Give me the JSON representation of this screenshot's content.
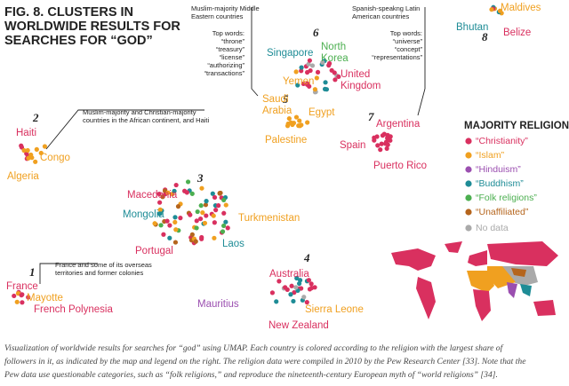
{
  "figure": {
    "title": [
      "FIG. 8. CLUSTERS IN",
      "WORLDWIDE RESULTS FOR",
      "SEARCHES FOR “GOD”"
    ],
    "clusters": [
      {
        "number": "1",
        "annotation": [
          "France and some of its overseas",
          "territories and former colonies"
        ],
        "countries": [
          {
            "name": [
              "France"
            ],
            "color": "#d9305f"
          },
          {
            "name": [
              "Mayotte"
            ],
            "color": "#f0a020"
          },
          {
            "name": [
              "French Polynesia"
            ],
            "color": "#d9305f"
          }
        ]
      },
      {
        "number": "2",
        "annotation": [
          "Muslim-majority and Christian-majority",
          "countries in the African continent, and Haiti"
        ],
        "countries": [
          {
            "name": [
              "Haiti"
            ],
            "color": "#d9305f"
          },
          {
            "name": [
              "Congo"
            ],
            "color": "#f0a020"
          },
          {
            "name": [
              "Algeria"
            ],
            "color": "#f0a020"
          }
        ]
      },
      {
        "number": "3",
        "countries": [
          {
            "name": [
              "Macedonia"
            ],
            "color": "#d9305f"
          },
          {
            "name": [
              "Mongolia"
            ],
            "color": "#1e8c96"
          },
          {
            "name": [
              "Turkmenistan"
            ],
            "color": "#f0a020"
          },
          {
            "name": [
              "Laos"
            ],
            "color": "#1e8c96"
          },
          {
            "name": [
              "Portugal"
            ],
            "color": "#d9305f"
          }
        ]
      },
      {
        "number": "4",
        "countries": [
          {
            "name": [
              "Australia"
            ],
            "color": "#d9305f"
          },
          {
            "name": [
              "Mauritius"
            ],
            "color": "#9b4fb0"
          },
          {
            "name": [
              "Sierra Leone"
            ],
            "color": "#f0a020"
          },
          {
            "name": [
              "New Zealand"
            ],
            "color": "#d9305f"
          }
        ]
      },
      {
        "number": "5",
        "countries": [
          {
            "name": [
              "Saudi",
              "Arabia"
            ],
            "color": "#f0a020"
          },
          {
            "name": [
              "Egypt"
            ],
            "color": "#f0a020"
          },
          {
            "name": [
              "Palestine"
            ],
            "color": "#f0a020"
          }
        ]
      },
      {
        "number": "6",
        "annotation": [
          "Muslim-majority Middle",
          "Eastern countries"
        ],
        "top_words": [
          "Top words:",
          "“throne”",
          "“treasury”",
          "“license”",
          "“authorizing”",
          "“transactions”"
        ],
        "countries": [
          {
            "name": [
              "Singapore"
            ],
            "color": "#1e8c96"
          },
          {
            "name": [
              "North",
              "Korea"
            ],
            "color": "#4caf50"
          },
          {
            "name": [
              "Yemen"
            ],
            "color": "#f0a020"
          },
          {
            "name": [
              "United",
              "Kingdom"
            ],
            "color": "#d9305f"
          }
        ]
      },
      {
        "number": "7",
        "annotation": [
          "Spanish-speakng Latin",
          "American countries"
        ],
        "top_words": [
          "Top words:",
          "“universe”",
          "“concept”",
          "“representations”"
        ],
        "countries": [
          {
            "name": [
              "Argentina"
            ],
            "color": "#d9305f"
          },
          {
            "name": [
              "Spain"
            ],
            "color": "#d9305f"
          },
          {
            "name": [
              "Puerto Rico"
            ],
            "color": "#d9305f"
          }
        ]
      },
      {
        "number": "8",
        "countries": [
          {
            "name": [
              "Maldives"
            ],
            "color": "#f0a020"
          },
          {
            "name": [
              "Bhutan"
            ],
            "color": "#1e8c96"
          },
          {
            "name": [
              "Belize"
            ],
            "color": "#d9305f"
          }
        ]
      }
    ],
    "legend": {
      "title": "MAJORITY RELIGION",
      "items": [
        {
          "label": "“Christianity”",
          "color": "#d9305f"
        },
        {
          "label": "“Islam”",
          "color": "#f0a020"
        },
        {
          "label": "“Hinduism”",
          "color": "#9b4fb0"
        },
        {
          "label": "“Buddhism”",
          "color": "#1e8c96"
        },
        {
          "label": "“Folk religions”",
          "color": "#4caf50"
        },
        {
          "label": "“Unaffiliated”",
          "color": "#b5651d"
        },
        {
          "label": "No data",
          "color": "#aaaaaa"
        }
      ]
    },
    "caption": [
      "Visualization of worldwide results for searches for “god” using UMAP. Each country is colored according to the religion with the largest share of",
      "followers in it, as indicated by the map and legend on the right. The religion data were compiled in 2010 by the Pew Research Center [33]. Note that the",
      "Pew data use questionable categories, such as “folk religions,” and reproduce the nineteenth-century European myth of “world religions” [34]."
    ]
  }
}
